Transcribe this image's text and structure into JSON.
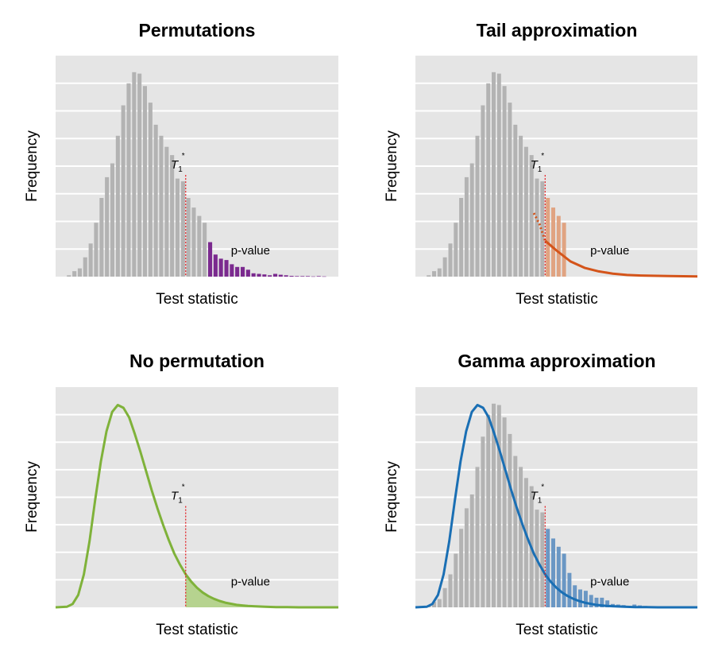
{
  "colors": {
    "panel_bg": "#e5e5e5",
    "gridline": "#ffffff",
    "bars": "#b3b3b3",
    "threshold_line": "#e4161b",
    "permutation_tail": "#7b2a8f",
    "tail_fit": "#d4541a",
    "tail_fill": "#e0a381",
    "no_permutation": "#7fb23a",
    "no_permutation_fill": "#b6d38f",
    "gamma": "#1a6fb4",
    "gamma_tail_bars": "#6a97c4"
  },
  "threshold": {
    "symbol": "T",
    "subscript": "1",
    "superscript": "*"
  },
  "chart_data": [
    {
      "type": "bar",
      "title": "Permutations",
      "xlabel": "Test statistic",
      "ylabel": "Frequency",
      "annotation": "p-value",
      "xlim": [
        0,
        100
      ],
      "ylim": [
        0,
        8
      ],
      "grid": true,
      "threshold_x": 46,
      "bar_heights": [
        0.05,
        0.2,
        0.3,
        0.7,
        1.2,
        1.95,
        2.85,
        3.6,
        4.1,
        5.1,
        6.2,
        7.0,
        7.4,
        7.35,
        6.9,
        6.3,
        5.5,
        5.1,
        4.7,
        4.4,
        3.55,
        3.45,
        2.85,
        2.5,
        2.2,
        1.95,
        1.25,
        0.8,
        0.65,
        0.6,
        0.45,
        0.35,
        0.35,
        0.25,
        0.12,
        0.1,
        0.08,
        0.05,
        0.1,
        0.07,
        0.05,
        0.03,
        0.02,
        0.02,
        0.02,
        0.01,
        0.02,
        0.01
      ],
      "tail_bar_heights": [
        1.25,
        0.8,
        0.65,
        0.6,
        0.45,
        0.35,
        0.35,
        0.25,
        0.12,
        0.1,
        0.08,
        0.05,
        0.1,
        0.07,
        0.05,
        0.03,
        0.02,
        0.02,
        0.02,
        0.01,
        0.02,
        0.01
      ]
    },
    {
      "type": "bar",
      "title": "Tail approximation",
      "xlabel": "Test statistic",
      "ylabel": "Frequency",
      "annotation": "p-value",
      "xlim": [
        0,
        100
      ],
      "ylim": [
        0,
        8
      ],
      "grid": true,
      "threshold_x": 46,
      "bar_heights": [
        0.05,
        0.2,
        0.3,
        0.7,
        1.2,
        1.95,
        2.85,
        3.6,
        4.1,
        5.1,
        6.2,
        7.0,
        7.4,
        7.35,
        6.9,
        6.3,
        5.5,
        5.1,
        4.7,
        4.4,
        3.55,
        3.45,
        2.85,
        2.5,
        2.2,
        1.95
      ],
      "tail_fit_curve": {
        "x": [
          42,
          44,
          46,
          50,
          55,
          60,
          65,
          70,
          75,
          80,
          90,
          100
        ],
        "y": [
          2.3,
          1.9,
          1.3,
          0.95,
          0.55,
          0.32,
          0.19,
          0.11,
          0.06,
          0.04,
          0.02,
          0.01
        ]
      }
    },
    {
      "type": "area",
      "title": "No permutation",
      "xlabel": "Test statistic",
      "ylabel": "Frequency",
      "annotation": "p-value",
      "xlim": [
        0,
        100
      ],
      "ylim": [
        0,
        8
      ],
      "grid": true,
      "threshold_x": 46,
      "curve": {
        "x": [
          0,
          4,
          6,
          8,
          10,
          12,
          14,
          16,
          18,
          20,
          22,
          24,
          26,
          28,
          30,
          32,
          34,
          36,
          38,
          40,
          42,
          44,
          46,
          48,
          50,
          52,
          54,
          56,
          58,
          60,
          62,
          64,
          66,
          68,
          70,
          74,
          78,
          82,
          86,
          90,
          95,
          100
        ],
        "y": [
          0,
          0.02,
          0.12,
          0.45,
          1.2,
          2.4,
          3.9,
          5.3,
          6.4,
          7.1,
          7.35,
          7.25,
          6.9,
          6.3,
          5.65,
          4.95,
          4.25,
          3.6,
          3.0,
          2.45,
          1.95,
          1.55,
          1.2,
          0.93,
          0.71,
          0.54,
          0.41,
          0.31,
          0.23,
          0.17,
          0.13,
          0.09,
          0.07,
          0.05,
          0.04,
          0.02,
          0.01,
          0.01,
          0.0,
          0.0,
          0.0,
          0.0
        ]
      }
    },
    {
      "type": "bar",
      "title": "Gamma approximation",
      "xlabel": "Test statistic",
      "ylabel": "Frequency",
      "annotation": "p-value",
      "xlim": [
        0,
        100
      ],
      "ylim": [
        0,
        8
      ],
      "grid": true,
      "threshold_x": 46,
      "bar_heights": [
        0.05,
        0.2,
        0.3,
        0.7,
        1.2,
        1.95,
        2.85,
        3.6,
        4.1,
        5.1,
        6.2,
        7.0,
        7.4,
        7.35,
        6.9,
        6.3,
        5.5,
        5.1,
        4.7,
        4.4,
        3.55,
        3.45,
        2.85,
        2.5,
        2.2,
        1.95,
        1.25,
        0.8,
        0.65,
        0.6,
        0.45,
        0.35,
        0.35,
        0.25,
        0.12,
        0.1,
        0.08,
        0.05,
        0.1,
        0.07,
        0.05,
        0.03,
        0.02,
        0.02,
        0.02,
        0.01,
        0.02,
        0.01
      ],
      "curve": {
        "x": [
          0,
          4,
          6,
          8,
          10,
          12,
          14,
          16,
          18,
          20,
          22,
          24,
          26,
          28,
          30,
          32,
          34,
          36,
          38,
          40,
          42,
          44,
          46,
          48,
          50,
          52,
          54,
          56,
          58,
          60,
          62,
          64,
          66,
          68,
          70,
          74,
          78,
          82,
          86,
          90,
          95,
          100
        ],
        "y": [
          0,
          0.02,
          0.12,
          0.45,
          1.2,
          2.4,
          3.9,
          5.3,
          6.4,
          7.1,
          7.35,
          7.25,
          6.9,
          6.3,
          5.65,
          4.95,
          4.25,
          3.6,
          3.0,
          2.45,
          1.95,
          1.55,
          1.2,
          0.93,
          0.71,
          0.54,
          0.41,
          0.31,
          0.23,
          0.17,
          0.13,
          0.09,
          0.07,
          0.05,
          0.04,
          0.02,
          0.01,
          0.01,
          0.0,
          0.0,
          0.0,
          0.0
        ]
      }
    }
  ]
}
